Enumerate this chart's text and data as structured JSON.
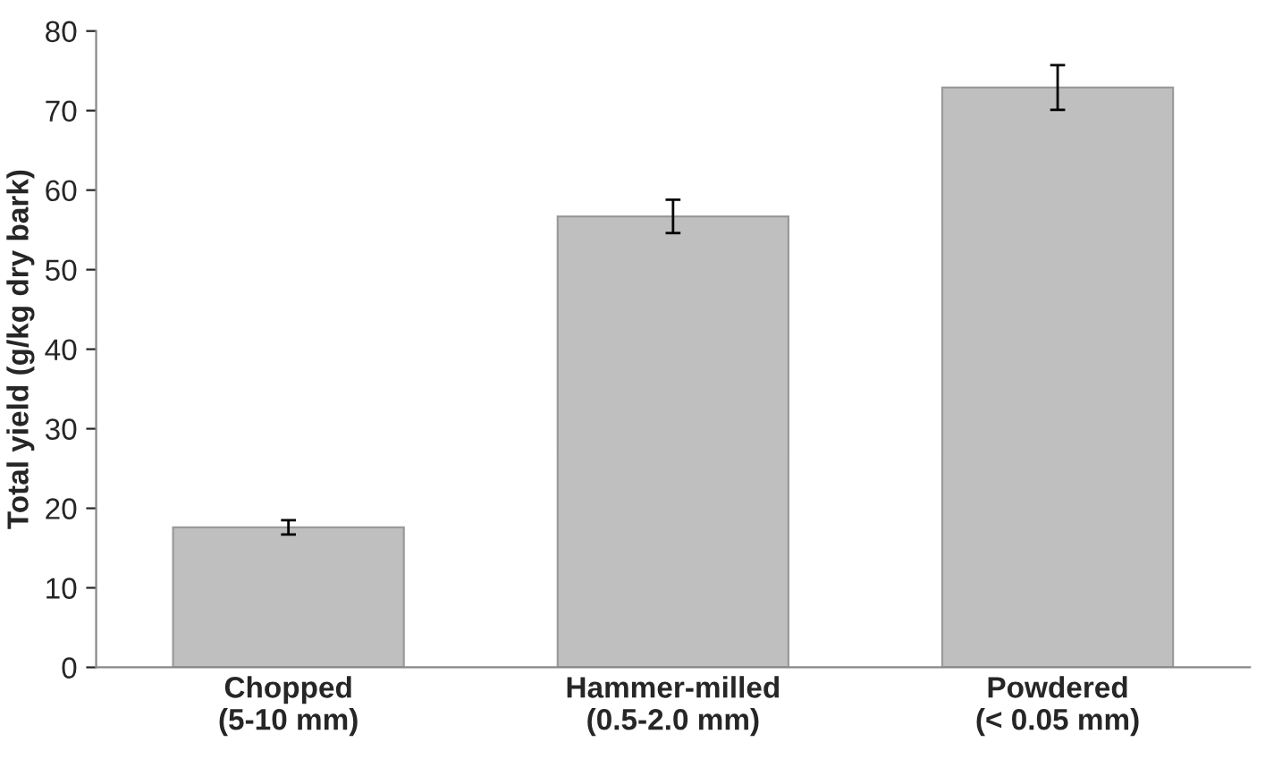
{
  "chart_data": {
    "type": "bar",
    "ylabel": "Total yield (g/kg dry bark)",
    "categories": [
      "Chopped\n(5-10 mm)",
      "Hammer-milled\n(0.5-2.0 mm)",
      "Powdered\n(< 0.05 mm)"
    ],
    "values": [
      17.6,
      56.7,
      72.9
    ],
    "errors": [
      0.9,
      2.1,
      2.8
    ],
    "color": "#bfbfbf",
    "ylim": [
      0,
      80
    ],
    "yticks": [
      0,
      10,
      20,
      30,
      40,
      50,
      60,
      70,
      80
    ],
    "grid": false
  }
}
